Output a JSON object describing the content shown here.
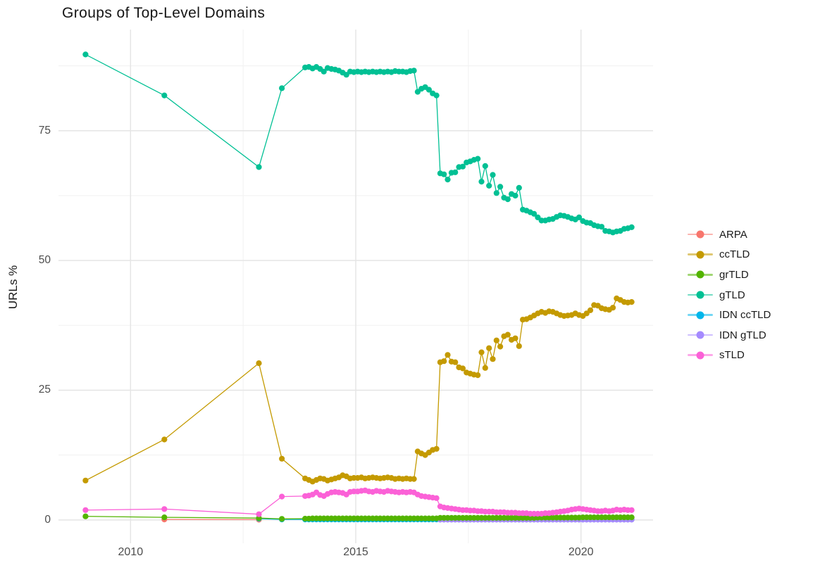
{
  "title": "Groups of Top-Level Domains",
  "axes": {
    "y_label": "URLs %",
    "y_ticks": [
      {
        "label": "0",
        "value": 0
      },
      {
        "label": "25",
        "value": 25
      },
      {
        "label": "50",
        "value": 50
      },
      {
        "label": "75",
        "value": 75
      }
    ],
    "y_minor": [
      12.5,
      37.5,
      62.5,
      87.5
    ],
    "x_ticks": [
      {
        "label": "2010",
        "value": 2010
      },
      {
        "label": "2015",
        "value": 2015
      },
      {
        "label": "2020",
        "value": 2020
      }
    ],
    "x_minor": [
      2012.5,
      2017.5
    ],
    "x_range": [
      2008.4,
      2021.6
    ],
    "y_range": [
      -4.5,
      94.5
    ],
    "grid": "on",
    "legend_position": "right"
  },
  "legend": [
    {
      "label": "ARPA",
      "color": "#F8766D"
    },
    {
      "label": "ccTLD",
      "color": "#C49A00"
    },
    {
      "label": "grTLD",
      "color": "#53B400"
    },
    {
      "label": "gTLD",
      "color": "#00C094"
    },
    {
      "label": "IDN ccTLD",
      "color": "#00B6EB"
    },
    {
      "label": "IDN gTLD",
      "color": "#A58AFF"
    },
    {
      "label": "sTLD",
      "color": "#FB61D7"
    }
  ],
  "chart_data": {
    "type": "line",
    "title": "Groups of Top-Level Domains",
    "xlabel": "",
    "ylabel": "URLs %",
    "ylim": [
      -4.5,
      94.5
    ],
    "xlim": [
      2008.4,
      2021.6
    ],
    "draw_order": [
      0,
      4,
      5,
      2,
      1,
      3,
      6
    ],
    "series": [
      {
        "name": "ARPA",
        "color": "#F8766D",
        "points": [
          [
            2010.75,
            0.1
          ],
          [
            2012.85,
            0.05
          ]
        ]
      },
      {
        "name": "ccTLD",
        "color": "#C49A00",
        "points": [
          [
            2009.0,
            7.6
          ],
          [
            2010.75,
            15.5
          ],
          [
            2012.85,
            30.2
          ],
          [
            2013.36,
            11.8
          ]
        ],
        "dense": {
          "x0": 2013.875,
          "dx": 0.083333,
          "values": [
            8.0,
            7.7,
            7.4,
            7.7,
            8.0,
            7.9,
            7.6,
            7.8,
            8.0,
            8.2,
            8.6,
            8.4,
            8.0,
            8.1,
            8.1,
            8.2,
            8.0,
            8.1,
            8.2,
            8.1,
            8.0,
            8.1,
            8.2,
            8.1,
            7.9,
            8.0,
            7.9,
            8.0,
            7.9,
            7.9,
            13.2,
            12.8,
            12.5,
            13.0,
            13.5,
            13.7,
            30.4,
            30.6,
            31.8,
            30.5,
            30.4,
            29.4,
            29.2,
            28.4,
            28.2,
            28.0,
            27.9,
            32.3,
            29.3,
            33.1,
            31.0,
            34.6,
            33.4,
            35.4,
            35.7,
            34.7,
            35.0,
            33.5,
            38.6,
            38.7,
            39.0,
            39.4,
            39.8,
            40.1,
            39.9,
            40.2,
            40.1,
            39.8,
            39.5,
            39.3,
            39.4,
            39.5,
            39.8,
            39.5,
            39.3,
            39.8,
            40.4,
            41.4,
            41.3,
            40.8,
            40.6,
            40.5,
            40.9,
            42.7,
            42.4,
            42.0,
            41.9,
            42.0
          ]
        }
      },
      {
        "name": "grTLD",
        "color": "#53B400",
        "points": [
          [
            2009.0,
            0.7
          ],
          [
            2010.75,
            0.5
          ],
          [
            2012.85,
            0.35
          ],
          [
            2013.36,
            0.2
          ]
        ],
        "dense": {
          "x0": 2013.875,
          "dx": 0.083333,
          "values": [
            0.25,
            0.25,
            0.3,
            0.3,
            0.3,
            0.3,
            0.3,
            0.3,
            0.3,
            0.3,
            0.3,
            0.3,
            0.3,
            0.3,
            0.3,
            0.3,
            0.3,
            0.3,
            0.3,
            0.3,
            0.3,
            0.3,
            0.3,
            0.3,
            0.3,
            0.3,
            0.3,
            0.3,
            0.3,
            0.3,
            0.3,
            0.3,
            0.3,
            0.3,
            0.3,
            0.3,
            0.4,
            0.4,
            0.4,
            0.4,
            0.4,
            0.4,
            0.4,
            0.4,
            0.4,
            0.4,
            0.4,
            0.4,
            0.4,
            0.4,
            0.4,
            0.4,
            0.4,
            0.4,
            0.4,
            0.4,
            0.4,
            0.4,
            0.4,
            0.4,
            0.4,
            0.4,
            0.45,
            0.45,
            0.45,
            0.45,
            0.45,
            0.45,
            0.45,
            0.45,
            0.45,
            0.45,
            0.45,
            0.45,
            0.5,
            0.5,
            0.5,
            0.5,
            0.5,
            0.5,
            0.5,
            0.5,
            0.5,
            0.5,
            0.5,
            0.5,
            0.5,
            0.5
          ]
        }
      },
      {
        "name": "gTLD",
        "color": "#00C094",
        "points": [
          [
            2009.0,
            89.7
          ],
          [
            2010.75,
            81.8
          ],
          [
            2012.85,
            68.0
          ],
          [
            2013.36,
            83.2
          ]
        ],
        "dense": {
          "x0": 2013.875,
          "dx": 0.083333,
          "values": [
            87.2,
            87.3,
            87.0,
            87.3,
            86.9,
            86.4,
            87.1,
            86.9,
            86.8,
            86.6,
            86.2,
            85.8,
            86.4,
            86.3,
            86.4,
            86.3,
            86.4,
            86.3,
            86.4,
            86.3,
            86.4,
            86.3,
            86.4,
            86.3,
            86.5,
            86.4,
            86.4,
            86.3,
            86.5,
            86.6,
            82.5,
            83.1,
            83.4,
            82.9,
            82.2,
            81.8,
            66.8,
            66.6,
            65.6,
            66.9,
            67.0,
            68.0,
            68.1,
            68.9,
            69.1,
            69.4,
            69.6,
            65.2,
            68.2,
            64.4,
            66.5,
            63.0,
            64.2,
            62.1,
            61.8,
            62.8,
            62.5,
            64.0,
            59.8,
            59.6,
            59.3,
            59.0,
            58.3,
            57.7,
            57.7,
            57.9,
            58.0,
            58.4,
            58.7,
            58.6,
            58.4,
            58.1,
            57.9,
            58.3,
            57.6,
            57.3,
            57.2,
            56.8,
            56.6,
            56.5,
            55.7,
            55.6,
            55.4,
            55.6,
            55.7,
            56.1,
            56.2,
            56.4
          ]
        }
      },
      {
        "name": "IDN ccTLD",
        "color": "#00B6EB",
        "points": [
          [
            2012.85,
            0.25
          ],
          [
            2013.36,
            0.1
          ]
        ],
        "dense": {
          "x0": 2013.875,
          "dx": 0.083333,
          "const": 0.1,
          "n": 88
        }
      },
      {
        "name": "IDN gTLD",
        "color": "#A58AFF",
        "points": [],
        "dense": {
          "x0": 2016.875,
          "dx": 0.083333,
          "const": 0.05,
          "n": 52
        }
      },
      {
        "name": "sTLD",
        "color": "#FB61D7",
        "points": [
          [
            2009.0,
            1.9
          ],
          [
            2010.75,
            2.1
          ],
          [
            2012.85,
            1.1
          ],
          [
            2013.36,
            4.5
          ]
        ],
        "dense": {
          "x0": 2013.875,
          "dx": 0.083333,
          "values": [
            4.6,
            4.7,
            4.9,
            5.3,
            4.8,
            4.6,
            5.0,
            5.3,
            5.4,
            5.3,
            5.2,
            4.9,
            5.4,
            5.5,
            5.5,
            5.6,
            5.7,
            5.5,
            5.4,
            5.6,
            5.5,
            5.4,
            5.6,
            5.5,
            5.4,
            5.3,
            5.4,
            5.3,
            5.4,
            5.3,
            4.9,
            4.6,
            4.5,
            4.4,
            4.3,
            4.2,
            2.6,
            2.4,
            2.3,
            2.2,
            2.1,
            2.0,
            1.9,
            1.9,
            1.8,
            1.8,
            1.7,
            1.7,
            1.6,
            1.6,
            1.6,
            1.5,
            1.5,
            1.5,
            1.4,
            1.4,
            1.4,
            1.3,
            1.3,
            1.3,
            1.2,
            1.2,
            1.2,
            1.2,
            1.3,
            1.3,
            1.4,
            1.5,
            1.6,
            1.7,
            1.8,
            2.0,
            2.1,
            2.2,
            2.1,
            2.0,
            1.9,
            1.8,
            1.7,
            1.7,
            1.8,
            1.7,
            1.8,
            2.0,
            1.9,
            2.0,
            1.9,
            1.9
          ]
        }
      }
    ]
  },
  "style": {
    "grid_major_color": "#E5E5E5",
    "grid_minor_color": "#F1F1F1",
    "tick_text_color": "#4D4D4D",
    "background": "#FFFFFF"
  }
}
